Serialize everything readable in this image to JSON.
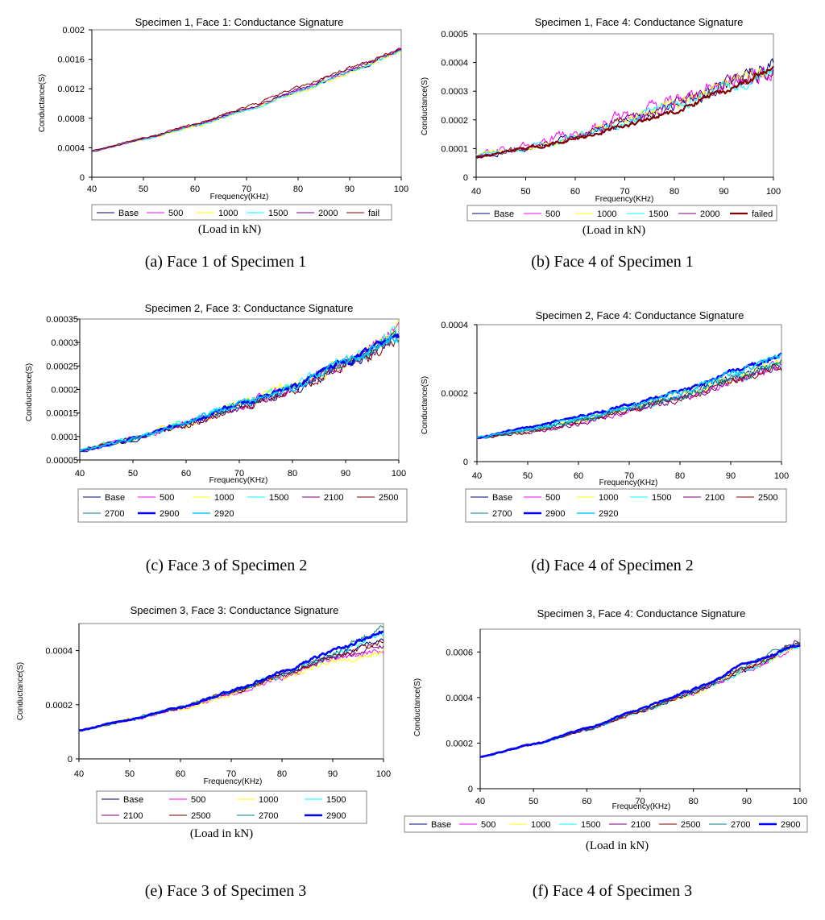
{
  "colors": {
    "Base": "#000080",
    "500": "#ff00ff",
    "1000": "#ffff00",
    "1500": "#00ffff",
    "2000": "#800080",
    "2100": "#800080",
    "2500": "#800000",
    "2700": "#008080",
    "2900": "#0000ff",
    "2920": "#00ccff",
    "fail": "#800000",
    "failed": "#800000"
  },
  "load_note": "(Load in kN)",
  "chart_data": [
    {
      "type": "line",
      "title": "Specimen 1, Face 1: Conductance Signature",
      "xlabel": "Frequency(KHz)",
      "ylabel": "Conductance(S)",
      "caption": "(a) Face 1 of Specimen 1",
      "xlim": [
        40,
        100
      ],
      "ylim": [
        0,
        0.002
      ],
      "x_ticks": [
        "40",
        "50",
        "60",
        "70",
        "80",
        "90",
        "100"
      ],
      "y_ticks": [
        "0",
        "0.0004",
        "0.0008",
        "0.0012",
        "0.0016",
        "0.002"
      ],
      "x_control": [
        40,
        50,
        60,
        70,
        80,
        90,
        100
      ],
      "series": [
        {
          "name": "Base",
          "values": [
            0.00035,
            0.00052,
            0.0007,
            0.00092,
            0.00117,
            0.00143,
            0.00172
          ],
          "noise": 2e-05,
          "width": 1
        },
        {
          "name": "500",
          "values": [
            0.00035,
            0.00051,
            0.0007,
            0.00091,
            0.00117,
            0.00144,
            0.00172
          ],
          "noise": 2e-05,
          "width": 1
        },
        {
          "name": "1000",
          "values": [
            0.00035,
            0.00051,
            0.00069,
            0.0009,
            0.00115,
            0.00142,
            0.00171
          ],
          "noise": 2e-05,
          "width": 1
        },
        {
          "name": "1500",
          "values": [
            0.00035,
            0.00051,
            0.0007,
            0.0009,
            0.00116,
            0.00143,
            0.00172
          ],
          "noise": 2e-05,
          "width": 1
        },
        {
          "name": "2000",
          "values": [
            0.00035,
            0.00052,
            0.00071,
            0.00093,
            0.00119,
            0.00146,
            0.00173
          ],
          "noise": 2e-05,
          "width": 1
        },
        {
          "name": "fail",
          "values": [
            0.00036,
            0.00053,
            0.00072,
            0.00095,
            0.00122,
            0.00148,
            0.00173
          ],
          "noise": 2e-05,
          "width": 1
        }
      ]
    },
    {
      "type": "line",
      "title": "Specimen 1, Face 4: Conductance Signature",
      "xlabel": "Frequency(KHz)",
      "ylabel": "Conductance(S)",
      "caption": "(b) Face 4 of Specimen 1",
      "xlim": [
        40,
        100
      ],
      "ylim": [
        0,
        0.0005
      ],
      "x_ticks": [
        "40",
        "50",
        "60",
        "70",
        "80",
        "90",
        "100"
      ],
      "y_ticks": [
        "0",
        "0.0001",
        "0.0002",
        "0.0003",
        "0.0004",
        "0.0005"
      ],
      "x_control": [
        40,
        50,
        60,
        70,
        80,
        90,
        100
      ],
      "series": [
        {
          "name": "Base",
          "values": [
            7e-05,
            0.0001,
            0.00014,
            0.00019,
            0.00025,
            0.00031,
            0.0004
          ],
          "noise": 2e-05,
          "width": 1
        },
        {
          "name": "500",
          "values": [
            8e-05,
            0.00011,
            0.00015,
            0.00021,
            0.00026,
            0.00033,
            0.00037
          ],
          "noise": 3e-05,
          "width": 1
        },
        {
          "name": "1000",
          "values": [
            8e-05,
            0.0001,
            0.00014,
            0.0002,
            0.00026,
            0.00032,
            0.00038
          ],
          "noise": 2e-05,
          "width": 1
        },
        {
          "name": "1500",
          "values": [
            8e-05,
            0.0001,
            0.00014,
            0.00019,
            0.00025,
            0.00031,
            0.00036
          ],
          "noise": 2e-05,
          "width": 1
        },
        {
          "name": "2000",
          "values": [
            7e-05,
            0.0001,
            0.00014,
            0.0002,
            0.00025,
            0.00032,
            0.00037
          ],
          "noise": 2e-05,
          "width": 1
        },
        {
          "name": "failed",
          "values": [
            7e-05,
            0.0001,
            0.00013,
            0.00018,
            0.00023,
            0.0003,
            0.00038
          ],
          "noise": 1e-05,
          "width": 2.2
        }
      ]
    },
    {
      "type": "line",
      "title": "Specimen 2, Face 3: Conductance Signature",
      "xlabel": "Frequency(KHz)",
      "ylabel": "Conductance(S)",
      "caption": "(c) Face 3 of Specimen 2",
      "xlim": [
        40,
        100
      ],
      "ylim": [
        5e-05,
        0.00035
      ],
      "x_ticks": [
        "40",
        "50",
        "60",
        "70",
        "80",
        "90",
        "100"
      ],
      "y_ticks": [
        "0.00005",
        "0.0001",
        "0.00015",
        "0.0002",
        "0.00025",
        "0.0003",
        "0.00035"
      ],
      "x_control": [
        40,
        50,
        60,
        70,
        80,
        90,
        100
      ],
      "series": [
        {
          "name": "Base",
          "values": [
            7e-05,
            9.5e-05,
            0.00013,
            0.000165,
            0.0002,
            0.00025,
            0.00031
          ],
          "noise": 1e-05,
          "width": 1
        },
        {
          "name": "500",
          "values": [
            7e-05,
            9.5e-05,
            0.00013,
            0.000165,
            0.000205,
            0.000255,
            0.00033
          ],
          "noise": 1.2e-05,
          "width": 1
        },
        {
          "name": "1000",
          "values": [
            7e-05,
            9.5e-05,
            0.00013,
            0.00017,
            0.00021,
            0.00026,
            0.00033
          ],
          "noise": 1.2e-05,
          "width": 1
        },
        {
          "name": "1500",
          "values": [
            7e-05,
            9.5e-05,
            0.00013,
            0.000165,
            0.000205,
            0.00026,
            0.00032
          ],
          "noise": 1.2e-05,
          "width": 1
        },
        {
          "name": "2100",
          "values": [
            7e-05,
            9.3e-05,
            0.000125,
            0.00016,
            0.0002,
            0.000255,
            0.00031
          ],
          "noise": 1e-05,
          "width": 1
        },
        {
          "name": "2500",
          "values": [
            7e-05,
            9.3e-05,
            0.000125,
            0.00016,
            0.0002,
            0.00025,
            0.0003
          ],
          "noise": 1e-05,
          "width": 1
        },
        {
          "name": "2700",
          "values": [
            7e-05,
            9.5e-05,
            0.00013,
            0.000165,
            0.000205,
            0.000255,
            0.00031
          ],
          "noise": 1e-05,
          "width": 1
        },
        {
          "name": "2900",
          "values": [
            7e-05,
            9.5e-05,
            0.00013,
            0.00017,
            0.000205,
            0.00026,
            0.00031
          ],
          "noise": 6e-06,
          "width": 2.6
        },
        {
          "name": "2920",
          "values": [
            7e-05,
            9.5e-05,
            0.00013,
            0.00017,
            0.000205,
            0.00026,
            0.00031
          ],
          "noise": 8e-06,
          "width": 1.6
        }
      ]
    },
    {
      "type": "line",
      "title": "Specimen 2, Face 4: Conductance Signature",
      "xlabel": "Frequency(KHz)",
      "ylabel": "Conductance(S)",
      "caption": "(d) Face 4 of Specimen 2",
      "xlim": [
        40,
        100
      ],
      "ylim": [
        0,
        0.0004
      ],
      "x_ticks": [
        "40",
        "50",
        "60",
        "70",
        "80",
        "90",
        "100"
      ],
      "y_ticks": [
        "0",
        "0.0002",
        "0.0004"
      ],
      "x_control": [
        40,
        50,
        60,
        70,
        80,
        90,
        100
      ],
      "series": [
        {
          "name": "Base",
          "values": [
            7e-05,
            9e-05,
            0.00012,
            0.000155,
            0.00019,
            0.00024,
            0.00029
          ],
          "noise": 1e-05,
          "width": 1
        },
        {
          "name": "500",
          "values": [
            7e-05,
            9e-05,
            0.000115,
            0.00015,
            0.00019,
            0.000235,
            0.00028
          ],
          "noise": 1.2e-05,
          "width": 1
        },
        {
          "name": "1000",
          "values": [
            7e-05,
            9e-05,
            0.00012,
            0.000155,
            0.000195,
            0.00024,
            0.00029
          ],
          "noise": 1.2e-05,
          "width": 1
        },
        {
          "name": "1500",
          "values": [
            7e-05,
            9e-05,
            0.00012,
            0.000155,
            0.00019,
            0.00024,
            0.00029
          ],
          "noise": 1e-05,
          "width": 1
        },
        {
          "name": "2100",
          "values": [
            7e-05,
            8.5e-05,
            0.00011,
            0.00015,
            0.00018,
            0.00023,
            0.00028
          ],
          "noise": 1e-05,
          "width": 1
        },
        {
          "name": "2500",
          "values": [
            7e-05,
            8.5e-05,
            0.000115,
            0.00015,
            0.000185,
            0.000235,
            0.00028
          ],
          "noise": 1e-05,
          "width": 1
        },
        {
          "name": "2700",
          "values": [
            7e-05,
            9e-05,
            0.00012,
            0.000155,
            0.00019,
            0.00024,
            0.00029
          ],
          "noise": 1e-05,
          "width": 1
        },
        {
          "name": "2900",
          "values": [
            7e-05,
            0.0001,
            0.00013,
            0.000165,
            0.000205,
            0.00026,
            0.00031
          ],
          "noise": 6e-06,
          "width": 2.6
        },
        {
          "name": "2920",
          "values": [
            7e-05,
            9.5e-05,
            0.000125,
            0.00016,
            0.0002,
            0.000255,
            0.00031
          ],
          "noise": 8e-06,
          "width": 1.6
        }
      ]
    },
    {
      "type": "line",
      "title": "Specimen 3, Face 3: Conductance Signature",
      "xlabel": "Frequency(KHz)",
      "ylabel": "Conductance(S)",
      "caption": "(e) Face 3 of Specimen 3",
      "xlim": [
        40,
        100
      ],
      "ylim": [
        0,
        0.0005
      ],
      "x_ticks": [
        "40",
        "50",
        "60",
        "70",
        "80",
        "90",
        "100"
      ],
      "y_ticks": [
        "0",
        "0.0002",
        "0.0004"
      ],
      "x_control": [
        40,
        50,
        60,
        70,
        80,
        90,
        100
      ],
      "series": [
        {
          "name": "Base",
          "values": [
            0.000105,
            0.000145,
            0.00019,
            0.000245,
            0.00031,
            0.00038,
            0.00044
          ],
          "noise": 8e-06,
          "width": 1
        },
        {
          "name": "500",
          "values": [
            0.000105,
            0.000145,
            0.000185,
            0.00024,
            0.0003,
            0.00037,
            0.0004
          ],
          "noise": 1e-05,
          "width": 1
        },
        {
          "name": "1000",
          "values": [
            0.000105,
            0.000145,
            0.000185,
            0.00024,
            0.0003,
            0.00036,
            0.00039
          ],
          "noise": 1e-05,
          "width": 1
        },
        {
          "name": "1500",
          "values": [
            0.000105,
            0.000145,
            0.00019,
            0.000245,
            0.00031,
            0.00038,
            0.00046
          ],
          "noise": 1e-05,
          "width": 1
        },
        {
          "name": "2100",
          "values": [
            0.000105,
            0.000145,
            0.00019,
            0.000245,
            0.00031,
            0.00037,
            0.00042
          ],
          "noise": 1e-05,
          "width": 1
        },
        {
          "name": "2500",
          "values": [
            0.000105,
            0.000145,
            0.00019,
            0.000245,
            0.00031,
            0.00038,
            0.00043
          ],
          "noise": 1e-05,
          "width": 1
        },
        {
          "name": "2700",
          "values": [
            0.000105,
            0.000145,
            0.00019,
            0.000248,
            0.000315,
            0.00039,
            0.00048
          ],
          "noise": 1.2e-05,
          "width": 1
        },
        {
          "name": "2900",
          "values": [
            0.000105,
            0.000145,
            0.00019,
            0.00025,
            0.00032,
            0.0004,
            0.00047
          ],
          "noise": 6e-06,
          "width": 2.6
        }
      ]
    },
    {
      "type": "line",
      "title": "Specimen 3, Face 4: Conductance Signature",
      "xlabel": "Frequency(KHz)",
      "ylabel": "Conductance(S)",
      "caption": "(f) Face 4 of Specimen 3",
      "xlim": [
        40,
        100
      ],
      "ylim": [
        0,
        0.0007
      ],
      "x_ticks": [
        "40",
        "50",
        "60",
        "70",
        "80",
        "90",
        "100"
      ],
      "y_ticks": [
        "0",
        "0.0002",
        "0.0004",
        "0.0006"
      ],
      "x_control": [
        40,
        50,
        60,
        70,
        80,
        90,
        100
      ],
      "series": [
        {
          "name": "Base",
          "values": [
            0.00014,
            0.000195,
            0.00026,
            0.00034,
            0.00042,
            0.00052,
            0.00064
          ],
          "noise": 8e-06,
          "width": 1
        },
        {
          "name": "500",
          "values": [
            0.00014,
            0.000195,
            0.00026,
            0.00034,
            0.00042,
            0.00052,
            0.00063
          ],
          "noise": 1e-05,
          "width": 1
        },
        {
          "name": "1000",
          "values": [
            0.00014,
            0.000195,
            0.00026,
            0.00034,
            0.00042,
            0.00052,
            0.00063
          ],
          "noise": 1e-05,
          "width": 1
        },
        {
          "name": "1500",
          "values": [
            0.00014,
            0.000195,
            0.00026,
            0.00034,
            0.00042,
            0.00052,
            0.00063
          ],
          "noise": 1e-05,
          "width": 1
        },
        {
          "name": "2100",
          "values": [
            0.00014,
            0.000195,
            0.00026,
            0.00034,
            0.000425,
            0.00053,
            0.00065
          ],
          "noise": 1e-05,
          "width": 1
        },
        {
          "name": "2500",
          "values": [
            0.00014,
            0.000195,
            0.00026,
            0.00034,
            0.000425,
            0.00053,
            0.00064
          ],
          "noise": 1e-05,
          "width": 1
        },
        {
          "name": "2700",
          "values": [
            0.00014,
            0.000195,
            0.00026,
            0.000345,
            0.00043,
            0.00054,
            0.00065
          ],
          "noise": 1e-05,
          "width": 1
        },
        {
          "name": "2900",
          "values": [
            0.00014,
            0.000195,
            0.000265,
            0.00035,
            0.000435,
            0.00055,
            0.00063
          ],
          "noise": 6e-06,
          "width": 2.6
        }
      ]
    }
  ]
}
